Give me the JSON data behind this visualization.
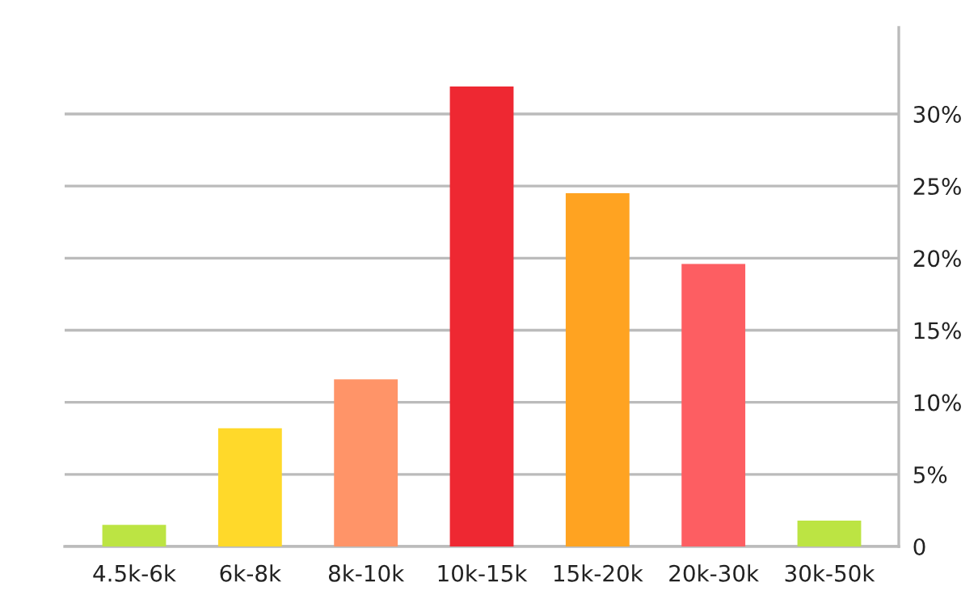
{
  "chart_data": {
    "type": "bar",
    "categories": [
      "4.5k-6k",
      "6k-8k",
      "8k-10k",
      "10k-15k",
      "15k-20k",
      "20k-30k",
      "30k-50k"
    ],
    "values": [
      1.5,
      8.2,
      11.6,
      31.9,
      24.5,
      19.6,
      1.8
    ],
    "colors": [
      "#bce443",
      "#ffd92a",
      "#ff9468",
      "#ee2832",
      "#ffa321",
      "#fd5e62",
      "#bce443"
    ],
    "ylim": [
      0,
      36
    ],
    "yticks": [
      0,
      {
        "value": 5,
        "label": "5%"
      },
      {
        "value": 10,
        "label": "10%"
      },
      {
        "value": 15,
        "label": "15%"
      },
      {
        "value": 20,
        "label": "20%"
      },
      {
        "value": 25,
        "label": "25%"
      },
      {
        "value": 30,
        "label": "30%"
      }
    ],
    "grid": "y",
    "legend": false
  }
}
